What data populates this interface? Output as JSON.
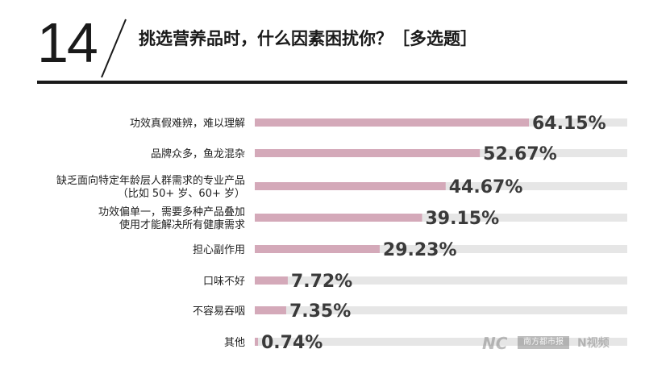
{
  "header": {
    "number": "14",
    "title": "挑选营养品时，什么因素困扰你？［多选题］"
  },
  "chart_data": {
    "type": "bar",
    "orientation": "horizontal",
    "categories": [
      [
        "功效真假难辨，难以理解"
      ],
      [
        "品牌众多，鱼龙混杂"
      ],
      [
        "缺乏面向特定年龄层人群需求的专业产品",
        "（比如 50+ 岁、60+ 岁）"
      ],
      [
        "功效偏单一，需要多种产品叠加",
        "使用才能解决所有健康需求"
      ],
      [
        "担心副作用"
      ],
      [
        "口味不好"
      ],
      [
        "不容易吞咽"
      ],
      [
        "其他"
      ]
    ],
    "values": [
      64.15,
      52.67,
      44.67,
      39.15,
      29.23,
      7.72,
      7.35,
      0.74
    ],
    "value_labels": [
      "64.15%",
      "52.67%",
      "44.67%",
      "39.15%",
      "29.23%",
      "7.72%",
      "7.35%",
      "0.74%"
    ],
    "xlim": [
      0,
      100
    ],
    "colors": {
      "bar": "#d4a9b9",
      "track": "#e6e6e6"
    },
    "grid": false,
    "legend": "none"
  },
  "watermark": {
    "mark": "NC",
    "box_text": "南方都市报",
    "video": "N视频"
  }
}
